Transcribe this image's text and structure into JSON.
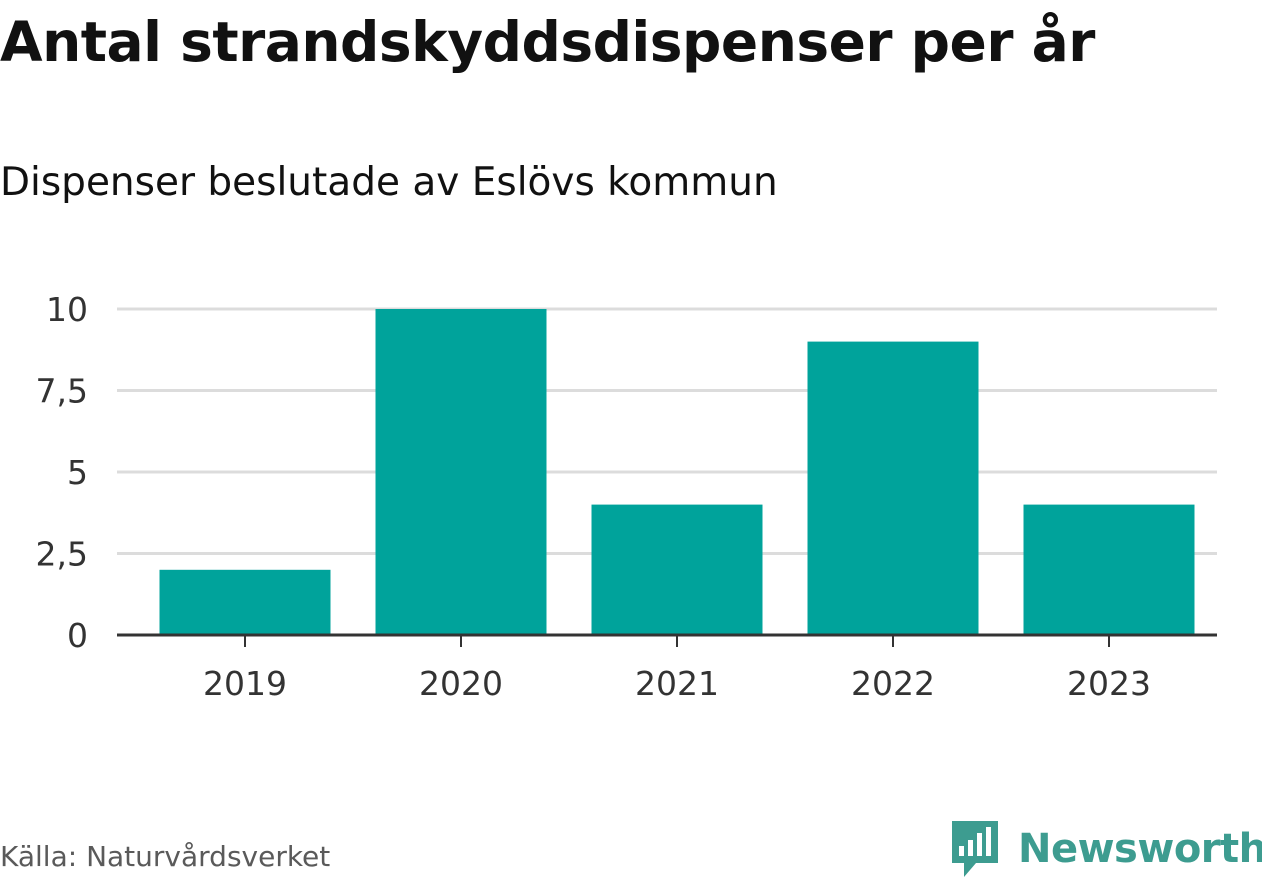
{
  "brand": {
    "name": "Newsworthy",
    "icon": "newsworthy-logo-icon",
    "color": "#3d9c90"
  },
  "source": "Källa: Naturvårdsverket",
  "chart_data": {
    "type": "bar",
    "title": "Antal strandskyddsdispenser per år",
    "subtitle": "Dispenser beslutade av Eslövs kommun",
    "categories": [
      "2019",
      "2020",
      "2021",
      "2022",
      "2023"
    ],
    "values": [
      2,
      10,
      4,
      9,
      4
    ],
    "yticks": [
      0,
      2.5,
      5,
      7.5,
      10
    ],
    "ytick_labels": [
      "0",
      "2,5",
      "5",
      "7,5",
      "10"
    ],
    "ylim": [
      0,
      10
    ],
    "xlabel": "",
    "ylabel": "",
    "grid": true,
    "bar_color": "#00a39b",
    "grid_color": "#dcdcdc",
    "axis_color": "#333333"
  }
}
